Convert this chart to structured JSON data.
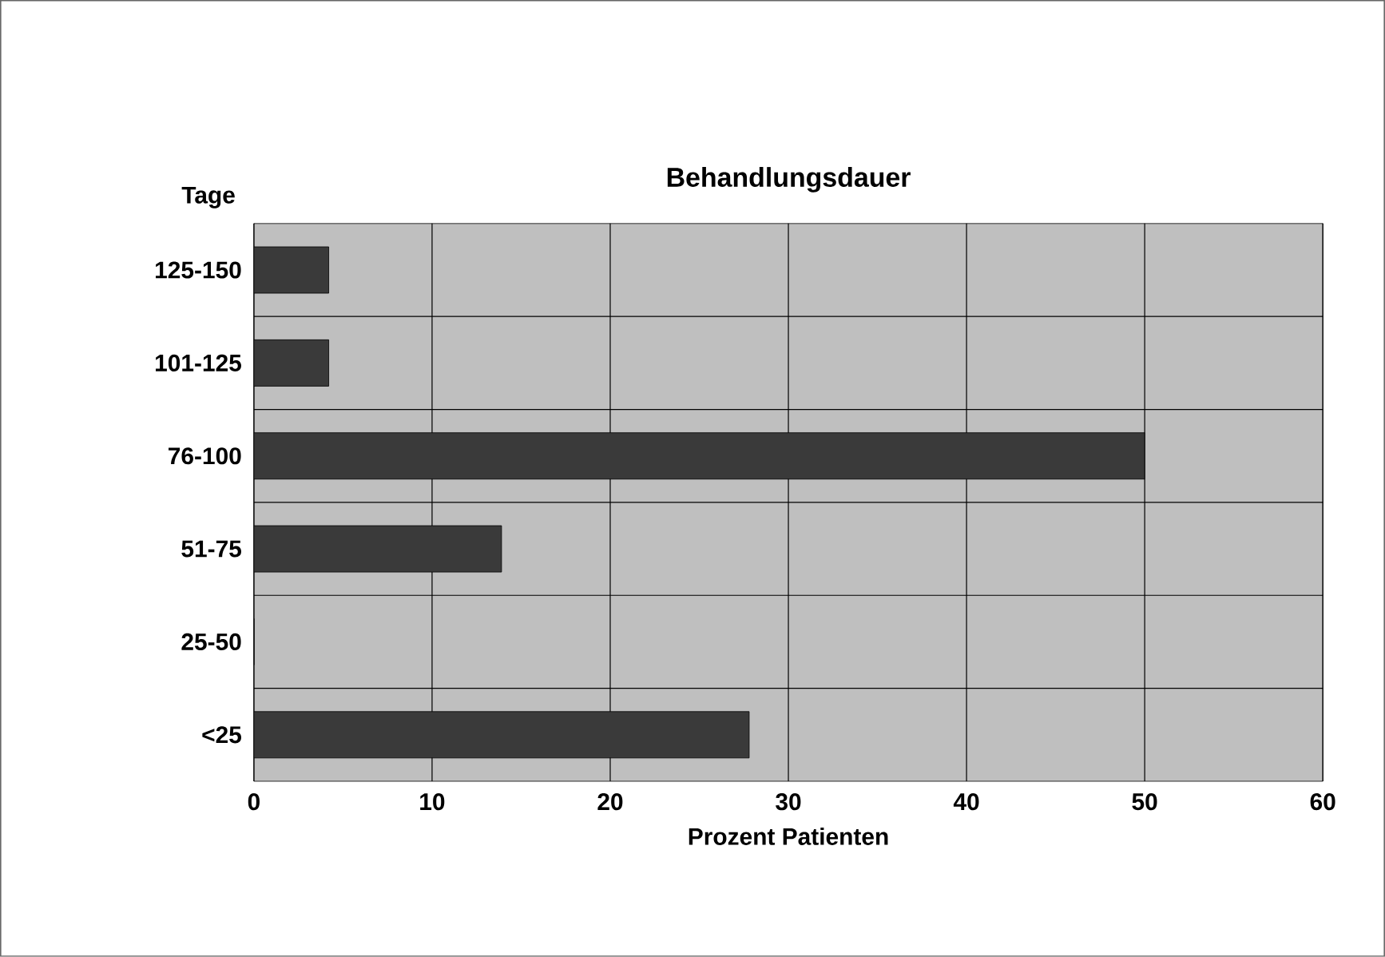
{
  "chart_data": {
    "type": "bar",
    "orientation": "horizontal",
    "title": "Behandlungsdauer",
    "xlabel": "Prozent Patienten",
    "ylabel": "Tage",
    "categories": [
      "125-150",
      "101-125",
      "76-100",
      "51-75",
      "25-50",
      "<25"
    ],
    "values": [
      4.2,
      4.2,
      50,
      13.9,
      0,
      27.8
    ],
    "color": "#3a3a3a",
    "xlim": [
      0,
      60
    ],
    "xticks": [
      0,
      10,
      20,
      30,
      40,
      50,
      60
    ],
    "grid": true
  }
}
